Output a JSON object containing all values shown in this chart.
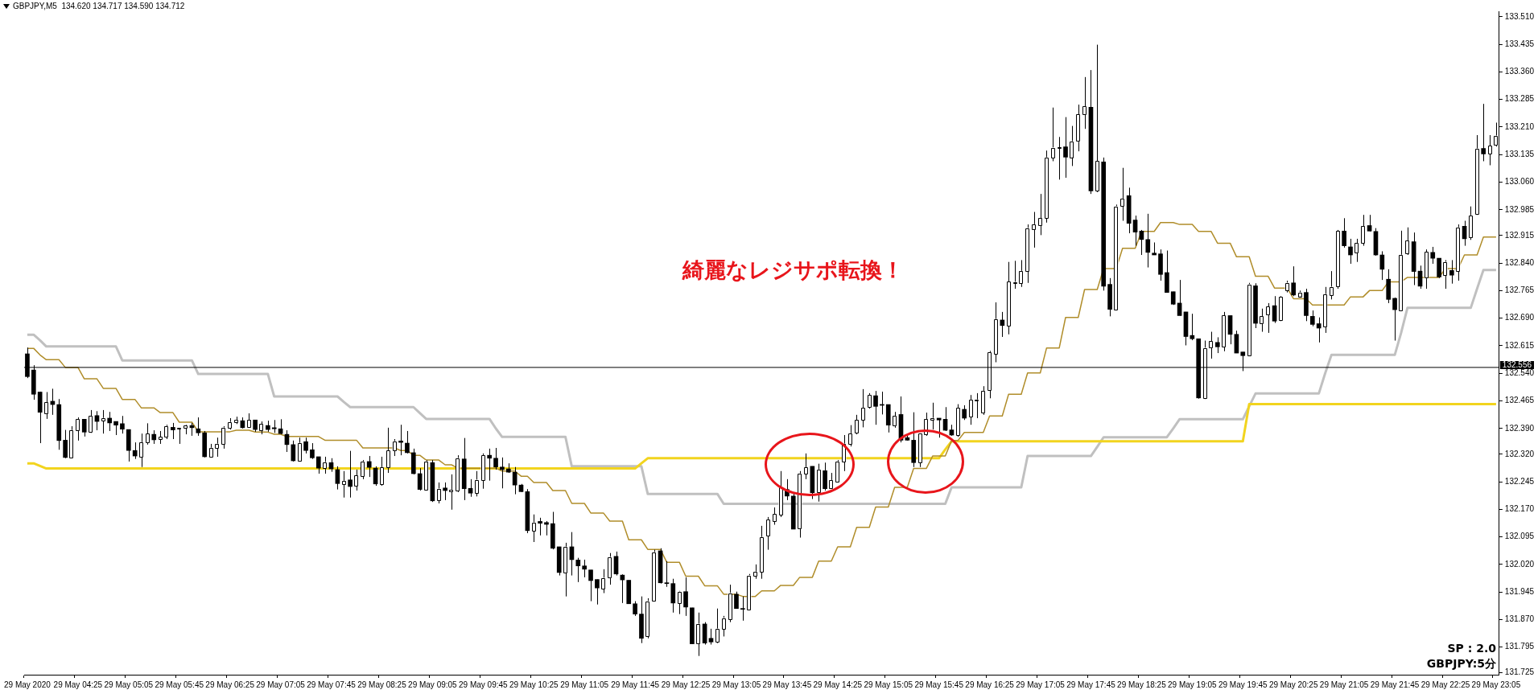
{
  "chart_data": {
    "type": "candlestick",
    "title": "GBPJPY,M5  134.620 134.717 134.590 134.712",
    "annotations": [
      "綺麗なレジサポ転換！",
      "SP : 2.0",
      "GBPJPY:5分"
    ],
    "categories": [
      "29 May 2020",
      null,
      null,
      null,
      null,
      null,
      null,
      null,
      "29 May 04:25",
      null,
      null,
      null,
      null,
      null,
      null,
      null,
      "29 May 05:05",
      null,
      null,
      null,
      null,
      null,
      null,
      null,
      "29 May 05:45",
      null,
      null,
      null,
      null,
      null,
      null,
      null,
      "29 May 06:25",
      null,
      null,
      null,
      null,
      null,
      null,
      null,
      "29 May 07:05",
      null,
      null,
      null,
      null,
      null,
      null,
      null,
      "29 May 07:45",
      null,
      null,
      null,
      null,
      null,
      null,
      null,
      "29 May 08:25",
      null,
      null,
      null,
      null,
      null,
      null,
      null,
      "29 May 09:05",
      null,
      null,
      null,
      null,
      null,
      null,
      null,
      "29 May 09:45",
      null,
      null,
      null,
      null,
      null,
      null,
      null,
      "29 May 10:25",
      null,
      null,
      null,
      null,
      null,
      null,
      null,
      "29 May 11:05",
      null,
      null,
      null,
      null,
      null,
      null,
      null,
      "29 May 11:45",
      null,
      null,
      null,
      null,
      null,
      null,
      null,
      "29 May 12:25",
      null,
      null,
      null,
      null,
      null,
      null,
      null,
      "29 May 13:05",
      null,
      null,
      null,
      null,
      null,
      null,
      null,
      "29 May 13:45",
      null,
      null,
      null,
      null,
      null,
      null,
      null,
      "29 May 14:25",
      null,
      null,
      null,
      null,
      null,
      null,
      null,
      "29 May 15:05",
      null,
      null,
      null,
      null,
      null,
      null,
      null,
      "29 May 15:45",
      null,
      null,
      null,
      null,
      null,
      null,
      null,
      "29 May 16:25",
      null,
      null,
      null,
      null,
      null,
      null,
      null,
      "29 May 17:05",
      null,
      null,
      null,
      null,
      null,
      null,
      null,
      "29 May 17:45",
      null,
      null,
      null,
      null,
      null,
      null,
      null,
      "29 May 18:25",
      null,
      null,
      null,
      null,
      null,
      null,
      null,
      "29 May 19:05",
      null,
      null,
      null,
      null,
      null,
      null,
      null,
      "29 May 19:45",
      null,
      null,
      null,
      null,
      null,
      null,
      null,
      "29 May 20:25",
      null,
      null,
      null,
      null,
      null,
      null,
      null,
      "29 May 21:05",
      null,
      null,
      null,
      null,
      null,
      null,
      null,
      "29 May 21:45",
      null,
      null,
      null,
      null,
      null,
      null,
      null,
      "29 May 22:25",
      null,
      null,
      null,
      null,
      null,
      null,
      null,
      "29 May 23:05"
    ],
    "ohlc": [
      [
        132.593,
        132.61,
        132.527,
        132.531
      ],
      [
        132.549,
        132.562,
        132.468,
        132.483
      ],
      [
        132.489,
        132.49,
        132.35,
        132.434
      ],
      [
        132.431,
        132.489,
        132.416,
        132.461
      ],
      [
        132.464,
        132.498,
        132.427,
        132.455
      ],
      [
        132.455,
        132.47,
        132.332,
        132.357
      ],
      [
        132.358,
        132.386,
        132.309,
        132.311
      ],
      [
        132.311,
        132.396,
        132.311,
        132.385
      ],
      [
        132.385,
        132.42,
        132.357,
        132.415
      ],
      [
        132.415,
        132.415,
        132.368,
        132.38
      ],
      [
        132.38,
        132.44,
        132.378,
        132.424
      ],
      [
        132.425,
        132.437,
        132.385,
        132.409
      ],
      [
        132.411,
        132.44,
        132.376,
        132.418
      ],
      [
        132.418,
        132.435,
        132.383,
        132.405
      ],
      [
        132.409,
        132.409,
        132.372,
        132.399
      ],
      [
        132.403,
        132.424,
        132.376,
        132.388
      ],
      [
        132.387,
        132.387,
        132.3,
        132.33
      ],
      [
        132.33,
        132.352,
        132.307,
        132.315
      ],
      [
        132.313,
        132.376,
        132.285,
        132.352
      ],
      [
        132.352,
        132.404,
        132.346,
        132.376
      ],
      [
        132.374,
        132.385,
        132.348,
        132.359
      ],
      [
        132.361,
        132.383,
        132.348,
        132.367
      ],
      [
        132.367,
        132.4,
        132.361,
        132.396
      ],
      [
        132.393,
        132.405,
        132.361,
        132.386
      ],
      [
        132.388,
        132.391,
        132.348,
        132.391
      ],
      [
        132.392,
        132.4,
        132.374,
        132.398
      ],
      [
        132.398,
        132.405,
        132.37,
        132.392
      ],
      [
        132.389,
        132.42,
        132.37,
        132.378
      ],
      [
        132.378,
        132.383,
        132.311,
        132.313
      ],
      [
        132.313,
        132.348,
        132.311,
        132.337
      ],
      [
        132.337,
        132.365,
        132.313,
        132.348
      ],
      [
        132.348,
        132.396,
        132.335,
        132.392
      ],
      [
        132.392,
        132.418,
        132.387,
        132.407
      ],
      [
        132.406,
        132.422,
        132.402,
        132.413
      ],
      [
        132.411,
        132.42,
        132.39,
        132.392
      ],
      [
        132.394,
        132.431,
        132.392,
        132.413
      ],
      [
        132.413,
        132.413,
        132.381,
        132.387
      ],
      [
        132.385,
        132.409,
        132.374,
        132.402
      ],
      [
        132.398,
        132.411,
        132.381,
        132.387
      ],
      [
        132.392,
        132.413,
        132.378,
        132.389
      ],
      [
        132.389,
        132.415,
        132.374,
        132.376
      ],
      [
        132.374,
        132.385,
        132.326,
        132.346
      ],
      [
        132.346,
        132.357,
        132.3,
        132.302
      ],
      [
        132.302,
        132.365,
        132.3,
        132.35
      ],
      [
        132.354,
        132.365,
        132.322,
        132.33
      ],
      [
        132.332,
        132.35,
        132.307,
        132.31
      ],
      [
        132.313,
        132.313,
        132.267,
        132.282
      ],
      [
        132.282,
        132.313,
        132.267,
        132.298
      ],
      [
        132.297,
        132.309,
        132.272,
        132.28
      ],
      [
        132.278,
        132.287,
        132.224,
        132.24
      ],
      [
        132.239,
        132.274,
        132.202,
        132.247
      ],
      [
        132.25,
        132.329,
        132.202,
        132.232
      ],
      [
        132.233,
        132.278,
        132.221,
        132.262
      ],
      [
        132.26,
        132.304,
        132.252,
        132.3
      ],
      [
        132.3,
        132.315,
        132.258,
        132.284
      ],
      [
        132.282,
        132.287,
        132.234,
        132.239
      ],
      [
        132.239,
        132.313,
        132.234,
        132.284
      ],
      [
        132.284,
        132.392,
        132.269,
        132.33
      ],
      [
        132.33,
        132.361,
        132.315,
        132.355
      ],
      [
        132.356,
        132.4,
        132.317,
        132.352
      ],
      [
        132.35,
        132.383,
        132.322,
        132.324
      ],
      [
        132.324,
        132.335,
        132.265,
        132.267
      ],
      [
        132.267,
        132.282,
        132.221,
        132.224
      ],
      [
        132.224,
        132.304,
        132.224,
        132.3
      ],
      [
        132.297,
        132.304,
        132.19,
        132.193
      ],
      [
        132.195,
        132.243,
        132.186,
        132.226
      ],
      [
        132.228,
        132.243,
        132.195,
        132.221
      ],
      [
        132.219,
        132.265,
        132.169,
        132.223
      ],
      [
        132.221,
        132.317,
        132.217,
        132.309
      ],
      [
        132.307,
        132.364,
        132.195,
        132.226
      ],
      [
        132.227,
        132.252,
        132.204,
        132.214
      ],
      [
        132.215,
        132.274,
        132.205,
        132.25
      ],
      [
        132.25,
        132.322,
        132.226,
        132.317
      ],
      [
        132.317,
        132.335,
        132.248,
        132.309
      ],
      [
        132.309,
        132.337,
        132.278,
        132.285
      ],
      [
        132.285,
        132.311,
        132.227,
        132.278
      ],
      [
        132.28,
        132.295,
        132.269,
        132.271
      ],
      [
        132.271,
        132.285,
        132.211,
        132.236
      ],
      [
        132.236,
        132.239,
        132.217,
        132.218
      ],
      [
        132.218,
        132.225,
        132.105,
        132.112
      ],
      [
        132.112,
        132.156,
        132.081,
        132.134
      ],
      [
        132.137,
        132.147,
        132.099,
        132.132
      ],
      [
        132.134,
        132.138,
        132.099,
        132.129
      ],
      [
        132.131,
        132.163,
        132.061,
        132.064
      ],
      [
        132.068,
        132.068,
        131.99,
        131.998
      ],
      [
        131.997,
        132.079,
        131.933,
        132.068
      ],
      [
        132.068,
        132.108,
        131.99,
        132.033
      ],
      [
        132.032,
        132.038,
        131.972,
        132.016
      ],
      [
        132.016,
        132.033,
        131.985,
        132.007
      ],
      [
        132.005,
        132.005,
        131.92,
        131.976
      ],
      [
        131.979,
        131.979,
        131.911,
        131.956
      ],
      [
        131.955,
        132.007,
        131.942,
        131.983
      ],
      [
        131.985,
        132.051,
        131.965,
        132.04
      ],
      [
        132.042,
        132.055,
        131.99,
        131.994
      ],
      [
        131.991,
        131.993,
        131.915,
        131.978
      ],
      [
        131.977,
        131.977,
        131.913,
        131.913
      ],
      [
        131.913,
        131.92,
        131.88,
        131.885
      ],
      [
        131.885,
        131.933,
        131.806,
        131.819
      ],
      [
        131.825,
        131.928,
        131.819,
        131.92
      ],
      [
        131.921,
        132.06,
        131.92,
        132.053
      ],
      [
        132.057,
        132.064,
        131.968,
        131.97
      ],
      [
        131.97,
        132.029,
        131.959,
        131.968
      ],
      [
        131.968,
        131.981,
        131.889,
        131.915
      ],
      [
        131.915,
        131.948,
        131.885,
        131.946
      ],
      [
        131.946,
        131.985,
        131.88,
        131.904
      ],
      [
        131.902,
        131.902,
        131.804,
        131.804
      ],
      [
        131.806,
        131.889,
        131.771,
        131.858
      ],
      [
        131.858,
        131.863,
        131.802,
        131.806
      ],
      [
        131.819,
        131.845,
        131.802,
        131.809
      ],
      [
        131.81,
        131.9,
        131.806,
        131.845
      ],
      [
        131.845,
        131.88,
        131.824,
        131.874
      ],
      [
        131.872,
        131.965,
        131.863,
        131.942
      ],
      [
        131.939,
        131.946,
        131.9,
        131.9
      ],
      [
        131.9,
        131.933,
        131.867,
        131.898
      ],
      [
        131.898,
        131.994,
        131.898,
        131.99
      ],
      [
        131.988,
        132.02,
        131.981,
        132.0
      ],
      [
        132.0,
        132.125,
        131.981,
        132.094
      ],
      [
        132.099,
        132.149,
        132.06,
        132.142
      ],
      [
        132.138,
        132.175,
        132.128,
        132.157
      ],
      [
        132.156,
        132.274,
        132.149,
        132.23
      ],
      [
        132.224,
        132.252,
        132.195,
        132.206
      ],
      [
        132.206,
        132.217,
        132.116,
        132.116
      ],
      [
        132.119,
        132.274,
        132.093,
        132.267
      ],
      [
        132.267,
        132.322,
        132.252,
        132.284
      ],
      [
        132.287,
        132.287,
        132.198,
        132.215
      ],
      [
        132.217,
        132.294,
        132.191,
        132.278
      ],
      [
        132.275,
        132.297,
        132.221,
        132.226
      ],
      [
        132.228,
        132.269,
        132.226,
        132.249
      ],
      [
        132.246,
        132.304,
        132.243,
        132.3
      ],
      [
        132.3,
        132.372,
        132.274,
        132.348
      ],
      [
        132.348,
        132.399,
        132.341,
        132.376
      ],
      [
        132.379,
        132.427,
        132.374,
        132.413
      ],
      [
        132.413,
        132.497,
        132.393,
        132.446
      ],
      [
        132.448,
        132.486,
        132.444,
        132.481
      ],
      [
        132.479,
        132.492,
        132.4,
        132.45
      ],
      [
        132.455,
        132.49,
        132.428,
        132.453
      ],
      [
        132.455,
        132.455,
        132.379,
        132.399
      ],
      [
        132.398,
        132.435,
        132.392,
        132.424
      ],
      [
        132.428,
        132.477,
        132.352,
        132.358
      ],
      [
        132.365,
        132.374,
        132.357,
        132.358
      ],
      [
        132.358,
        132.434,
        132.285,
        132.297
      ],
      [
        132.297,
        132.376,
        132.285,
        132.376
      ],
      [
        132.374,
        132.433,
        132.37,
        132.415
      ],
      [
        132.413,
        132.46,
        132.387,
        132.418
      ],
      [
        132.418,
        132.418,
        132.365,
        132.413
      ],
      [
        132.415,
        132.448,
        132.383,
        132.385
      ],
      [
        132.386,
        132.4,
        132.37,
        132.372
      ],
      [
        132.372,
        132.456,
        132.367,
        132.446
      ],
      [
        132.442,
        132.453,
        132.413,
        132.418
      ],
      [
        132.421,
        132.481,
        132.4,
        132.468
      ],
      [
        132.466,
        132.486,
        132.418,
        132.468
      ],
      [
        132.434,
        132.505,
        132.427,
        132.492
      ],
      [
        132.495,
        132.601,
        132.472,
        132.597
      ],
      [
        132.592,
        132.733,
        132.57,
        132.687
      ],
      [
        132.685,
        132.707,
        132.639,
        132.67
      ],
      [
        132.668,
        132.843,
        132.646,
        132.789
      ],
      [
        132.786,
        132.846,
        132.77,
        132.787
      ],
      [
        132.786,
        132.848,
        132.775,
        132.818
      ],
      [
        132.818,
        132.945,
        132.786,
        132.935
      ],
      [
        132.932,
        132.979,
        132.882,
        132.945
      ],
      [
        132.943,
        133.028,
        132.916,
        132.962
      ],
      [
        132.962,
        133.146,
        132.95,
        133.127
      ],
      [
        133.127,
        133.263,
        133.117,
        133.154
      ],
      [
        133.152,
        133.183,
        133.067,
        133.154
      ],
      [
        133.156,
        133.237,
        133.072,
        133.128
      ],
      [
        133.128,
        133.213,
        133.104,
        133.171
      ],
      [
        133.171,
        133.271,
        133.144,
        133.244
      ],
      [
        133.244,
        133.346,
        133.205,
        133.266
      ],
      [
        133.264,
        133.365,
        133.028,
        133.036
      ],
      [
        133.036,
        133.434,
        133.033,
        133.117
      ],
      [
        133.115,
        133.127,
        132.765,
        132.777
      ],
      [
        132.782,
        132.799,
        132.695,
        132.714
      ],
      [
        132.714,
        132.999,
        132.711,
        132.994
      ],
      [
        132.995,
        133.099,
        132.955,
        133.015
      ],
      [
        133.023,
        133.045,
        132.921,
        132.948
      ],
      [
        132.957,
        132.969,
        132.887,
        132.924
      ],
      [
        132.927,
        132.93,
        132.862,
        132.904
      ],
      [
        132.904,
        132.974,
        132.828,
        132.869
      ],
      [
        132.867,
        132.896,
        132.862,
        132.862
      ],
      [
        132.865,
        132.877,
        132.792,
        132.809
      ],
      [
        132.814,
        132.874,
        132.76,
        132.76
      ],
      [
        132.762,
        132.762,
        132.726,
        132.728
      ],
      [
        132.731,
        132.794,
        132.697,
        132.697
      ],
      [
        132.707,
        132.707,
        132.616,
        132.64
      ],
      [
        132.643,
        132.702,
        132.63,
        132.634
      ],
      [
        132.634,
        132.634,
        132.471,
        132.473
      ],
      [
        132.473,
        132.629,
        132.47,
        132.609
      ],
      [
        132.609,
        132.653,
        132.58,
        132.627
      ],
      [
        132.624,
        132.638,
        132.595,
        132.612
      ],
      [
        132.612,
        132.707,
        132.6,
        132.697
      ],
      [
        132.697,
        132.697,
        132.619,
        132.646
      ],
      [
        132.646,
        132.656,
        132.595,
        132.595
      ],
      [
        132.598,
        132.598,
        132.546,
        132.588
      ],
      [
        132.59,
        132.786,
        132.59,
        132.782
      ],
      [
        132.778,
        132.785,
        132.663,
        132.676
      ],
      [
        132.676,
        132.716,
        132.653,
        132.695
      ],
      [
        132.699,
        132.731,
        132.65,
        132.721
      ],
      [
        132.724,
        132.75,
        132.677,
        132.682
      ],
      [
        132.684,
        132.75,
        132.682,
        132.748
      ],
      [
        132.767,
        132.792,
        132.76,
        132.786
      ],
      [
        132.786,
        132.831,
        132.75,
        132.753
      ],
      [
        132.75,
        132.765,
        132.746,
        132.76
      ],
      [
        132.76,
        132.77,
        132.682,
        132.697
      ],
      [
        132.695,
        132.711,
        132.668,
        132.673
      ],
      [
        132.675,
        132.692,
        132.624,
        132.663
      ],
      [
        132.668,
        132.775,
        132.65,
        132.755
      ],
      [
        132.753,
        132.818,
        132.741,
        132.775
      ],
      [
        132.775,
        132.93,
        132.77,
        132.927
      ],
      [
        132.927,
        132.962,
        132.882,
        132.887
      ],
      [
        132.884,
        132.906,
        132.838,
        132.862
      ],
      [
        132.867,
        132.906,
        132.843,
        132.894
      ],
      [
        132.894,
        132.971,
        132.887,
        132.94
      ],
      [
        132.942,
        132.971,
        132.926,
        132.927
      ],
      [
        132.926,
        132.935,
        132.86,
        132.862
      ],
      [
        132.862,
        132.872,
        132.794,
        132.823
      ],
      [
        132.796,
        132.823,
        132.731,
        132.741
      ],
      [
        132.744,
        132.746,
        132.629,
        132.713
      ],
      [
        132.711,
        132.928,
        132.709,
        132.862
      ],
      [
        132.865,
        132.937,
        132.862,
        132.901
      ],
      [
        132.898,
        132.923,
        132.78,
        132.817
      ],
      [
        132.818,
        132.833,
        132.77,
        132.777
      ],
      [
        132.799,
        132.877,
        132.77,
        132.87
      ],
      [
        132.869,
        132.884,
        132.838,
        132.853
      ],
      [
        132.853,
        132.853,
        132.799,
        132.802
      ],
      [
        132.807,
        132.848,
        132.77,
        132.843
      ],
      [
        132.82,
        132.848,
        132.784,
        132.807
      ],
      [
        132.819,
        132.945,
        132.792,
        132.937
      ],
      [
        132.94,
        132.955,
        132.887,
        132.906
      ],
      [
        132.911,
        132.994,
        132.903,
        132.969
      ],
      [
        132.974,
        133.188,
        132.971,
        133.151
      ],
      [
        133.152,
        133.273,
        133.117,
        133.137
      ],
      [
        133.137,
        133.188,
        133.106,
        133.159
      ],
      [
        133.161,
        133.222,
        133.157,
        133.186
      ]
    ],
    "series": [
      {
        "type": "line",
        "color": "#c0c0c0",
        "values": [
          132.645,
          132.645,
          132.63,
          132.613,
          132.613,
          132.613,
          132.613,
          132.613,
          132.613,
          132.613,
          132.613,
          132.613,
          132.613,
          132.613,
          132.613,
          132.575,
          132.575,
          132.575,
          132.575,
          132.575,
          132.575,
          132.575,
          132.575,
          132.575,
          132.575,
          132.575,
          132.575,
          132.538,
          132.538,
          132.538,
          132.538,
          132.538,
          132.538,
          132.538,
          132.538,
          132.538,
          132.538,
          132.538,
          132.538,
          132.477,
          132.477,
          132.477,
          132.477,
          132.477,
          132.477,
          132.477,
          132.477,
          132.477,
          132.477,
          132.477,
          132.462,
          132.448,
          132.448,
          132.448,
          132.448,
          132.448,
          132.448,
          132.448,
          132.448,
          132.448,
          132.448,
          132.448,
          132.432,
          132.416,
          132.416,
          132.416,
          132.416,
          132.416,
          132.416,
          132.416,
          132.416,
          132.416,
          132.416,
          132.416,
          132.39,
          132.367,
          132.367,
          132.367,
          132.367,
          132.367,
          132.367,
          132.367,
          132.367,
          132.367,
          132.367,
          132.367,
          132.287,
          132.287,
          132.287,
          132.287,
          132.287,
          132.287,
          132.287,
          132.287,
          132.287,
          132.287,
          132.287,
          132.287,
          132.212,
          132.212,
          132.212,
          132.212,
          132.212,
          132.212,
          132.212,
          132.212,
          132.212,
          132.212,
          132.212,
          132.212,
          132.185,
          132.185,
          132.185,
          132.185,
          132.185,
          132.185,
          132.185,
          132.185,
          132.185,
          132.185,
          132.185,
          132.185,
          132.185,
          132.185,
          132.185,
          132.185,
          132.185,
          132.185,
          132.185,
          132.185,
          132.185,
          132.185,
          132.185,
          132.185,
          132.185,
          132.185,
          132.185,
          132.185,
          132.185,
          132.185,
          132.185,
          132.185,
          132.185,
          132.185,
          132.185,
          132.185,
          132.23,
          132.23,
          132.23,
          132.23,
          132.23,
          132.23,
          132.23,
          132.23,
          132.23,
          132.23,
          132.23,
          132.23,
          132.315,
          132.315,
          132.315,
          132.315,
          132.315,
          132.315,
          132.315,
          132.315,
          132.315,
          132.315,
          132.315,
          132.34,
          132.366,
          132.366,
          132.366,
          132.366,
          132.366,
          132.366,
          132.366,
          132.366,
          132.366,
          132.366,
          132.366,
          132.39,
          132.415,
          132.415,
          132.415,
          132.415,
          132.415,
          132.415,
          132.415,
          132.415,
          132.415,
          132.415,
          132.415,
          132.45,
          132.485,
          132.485,
          132.485,
          132.485,
          132.485,
          132.485,
          132.485,
          132.485,
          132.485,
          132.485,
          132.485,
          132.54,
          132.59,
          132.59,
          132.59,
          132.59,
          132.59,
          132.59,
          132.59,
          132.59,
          132.59,
          132.59,
          132.59,
          132.65,
          132.718,
          132.718,
          132.718,
          132.718,
          132.718,
          132.718,
          132.718,
          132.718,
          132.718,
          132.718,
          132.718,
          132.77,
          132.821,
          132.821,
          132.821
        ]
      },
      {
        "type": "line",
        "color": "#f2d41e",
        "values": [
          132.295,
          132.295,
          132.288,
          132.281,
          132.281,
          132.281,
          132.281,
          132.281,
          132.281,
          132.281,
          132.281,
          132.281,
          132.281,
          132.281,
          132.281,
          132.281,
          132.281,
          132.281,
          132.281,
          132.281,
          132.281,
          132.281,
          132.281,
          132.281,
          132.281,
          132.281,
          132.281,
          132.281,
          132.281,
          132.281,
          132.281,
          132.281,
          132.281,
          132.281,
          132.281,
          132.281,
          132.281,
          132.281,
          132.281,
          132.281,
          132.281,
          132.281,
          132.281,
          132.281,
          132.281,
          132.281,
          132.281,
          132.281,
          132.281,
          132.281,
          132.281,
          132.281,
          132.281,
          132.281,
          132.281,
          132.281,
          132.281,
          132.281,
          132.281,
          132.281,
          132.281,
          132.281,
          132.281,
          132.281,
          132.281,
          132.281,
          132.281,
          132.281,
          132.281,
          132.281,
          132.281,
          132.281,
          132.281,
          132.281,
          132.281,
          132.281,
          132.281,
          132.281,
          132.281,
          132.281,
          132.281,
          132.281,
          132.281,
          132.281,
          132.281,
          132.281,
          132.281,
          132.281,
          132.281,
          132.281,
          132.281,
          132.281,
          132.281,
          132.281,
          132.281,
          132.281,
          132.281,
          132.295,
          132.309,
          132.309,
          132.309,
          132.309,
          132.309,
          132.309,
          132.309,
          132.309,
          132.309,
          132.309,
          132.309,
          132.309,
          132.309,
          132.309,
          132.309,
          132.309,
          132.309,
          132.309,
          132.309,
          132.309,
          132.309,
          132.309,
          132.309,
          132.309,
          132.309,
          132.309,
          132.309,
          132.309,
          132.309,
          132.309,
          132.309,
          132.309,
          132.309,
          132.309,
          132.309,
          132.309,
          132.309,
          132.309,
          132.309,
          132.309,
          132.309,
          132.309,
          132.309,
          132.309,
          132.309,
          132.309,
          132.309,
          132.333,
          132.355,
          132.355,
          132.355,
          132.355,
          132.355,
          132.355,
          132.355,
          132.355,
          132.355,
          132.355,
          132.355,
          132.355,
          132.355,
          132.355,
          132.355,
          132.355,
          132.355,
          132.355,
          132.355,
          132.355,
          132.355,
          132.355,
          132.355,
          132.355,
          132.355,
          132.355,
          132.355,
          132.355,
          132.355,
          132.355,
          132.355,
          132.355,
          132.355,
          132.355,
          132.355,
          132.355,
          132.355,
          132.355,
          132.355,
          132.355,
          132.355,
          132.355,
          132.355,
          132.355,
          132.355,
          132.355,
          132.355,
          132.456,
          132.456,
          132.456,
          132.456,
          132.456,
          132.456,
          132.456,
          132.456,
          132.456,
          132.456,
          132.456,
          132.456,
          132.456,
          132.456,
          132.456,
          132.456,
          132.456,
          132.456,
          132.456,
          132.456,
          132.456,
          132.456,
          132.456,
          132.456,
          132.456,
          132.456,
          132.456,
          132.456,
          132.456,
          132.456,
          132.456,
          132.456,
          132.456,
          132.456,
          132.456,
          132.456,
          132.456,
          132.456,
          132.456,
          132.456
        ]
      },
      {
        "type": "line",
        "color": "#b08d2a",
        "values": [
          132.608,
          132.608,
          132.59,
          132.577,
          132.577,
          132.577,
          132.556,
          132.556,
          132.556,
          132.525,
          132.525,
          132.525,
          132.499,
          132.499,
          132.499,
          132.469,
          132.469,
          132.469,
          132.446,
          132.446,
          132.446,
          132.433,
          132.433,
          132.433,
          132.407,
          132.407,
          132.407,
          132.381,
          132.381,
          132.381,
          132.381,
          132.381,
          132.381,
          132.385,
          132.385,
          132.385,
          132.38,
          132.38,
          132.38,
          132.374,
          132.374,
          132.368,
          132.368,
          132.368,
          132.368,
          132.368,
          132.368,
          132.358,
          132.358,
          132.358,
          132.358,
          132.358,
          132.358,
          132.337,
          132.337,
          132.337,
          132.337,
          132.337,
          132.337,
          132.33,
          132.33,
          132.317,
          132.317,
          132.304,
          132.304,
          132.304,
          132.291,
          132.291,
          132.282,
          132.282,
          132.282,
          132.282,
          132.282,
          132.282,
          132.282,
          132.274,
          132.274,
          132.274,
          132.26,
          132.26,
          132.243,
          132.243,
          132.243,
          132.221,
          132.221,
          132.221,
          132.186,
          132.186,
          132.186,
          132.16,
          132.16,
          132.16,
          132.138,
          132.138,
          132.138,
          132.087,
          132.087,
          132.087,
          132.061,
          132.061,
          132.061,
          132.026,
          132.026,
          132.026,
          131.988,
          131.988,
          131.988,
          131.962,
          131.962,
          131.962,
          131.939,
          131.939,
          131.939,
          131.933,
          131.933,
          131.933,
          131.948,
          131.948,
          131.948,
          131.963,
          131.963,
          131.963,
          131.985,
          131.985,
          131.985,
          132.029,
          132.029,
          132.029,
          132.068,
          132.068,
          132.068,
          132.121,
          132.121,
          132.121,
          132.176,
          132.176,
          132.176,
          132.23,
          132.23,
          132.23,
          132.281,
          132.281,
          132.281,
          132.315,
          132.315,
          132.315,
          132.357,
          132.357,
          132.379,
          132.379,
          132.379,
          132.379,
          132.424,
          132.424,
          132.424,
          132.483,
          132.483,
          132.483,
          132.541,
          132.541,
          132.541,
          132.609,
          132.609,
          132.609,
          132.692,
          132.692,
          132.692,
          132.768,
          132.768,
          132.768,
          132.825,
          132.825,
          132.825,
          132.88,
          132.88,
          132.88,
          132.926,
          132.926,
          132.926,
          132.95,
          132.95,
          132.95,
          132.945,
          132.945,
          132.945,
          132.926,
          132.926,
          132.926,
          132.894,
          132.894,
          132.894,
          132.857,
          132.857,
          132.857,
          132.804,
          132.804,
          132.804,
          132.772,
          132.772,
          132.772,
          132.743,
          132.743,
          132.743,
          132.726,
          132.726,
          132.726,
          132.726,
          132.726,
          132.726,
          132.748,
          132.748,
          132.748,
          132.765,
          132.765,
          132.765,
          132.789,
          132.789,
          132.789,
          132.801,
          132.801,
          132.801,
          132.801,
          132.801,
          132.801,
          132.825,
          132.825,
          132.825,
          132.862,
          132.862,
          132.862,
          132.911,
          132.911,
          132.911
        ]
      }
    ],
    "ylim": [
      131.72,
      133.525
    ],
    "yticks": [
      {
        "value": 131.725,
        "label": "131.725"
      },
      {
        "value": 131.795,
        "label": "131.795"
      },
      {
        "value": 131.87,
        "label": "131.870"
      },
      {
        "value": 131.945,
        "label": "131.945"
      },
      {
        "value": 132.02,
        "label": "132.020"
      },
      {
        "value": 132.095,
        "label": "132.095"
      },
      {
        "value": 132.17,
        "label": "132.170"
      },
      {
        "value": 132.245,
        "label": "132.245"
      },
      {
        "value": 132.32,
        "label": "132.320"
      },
      {
        "value": 132.39,
        "label": "132.390"
      },
      {
        "value": 132.465,
        "label": "132.465"
      },
      {
        "value": 132.54,
        "label": "132.540"
      },
      {
        "value": 132.615,
        "label": "132.615"
      },
      {
        "value": 132.69,
        "label": "132.690"
      },
      {
        "value": 132.765,
        "label": "132.765"
      },
      {
        "value": 132.84,
        "label": "132.840"
      },
      {
        "value": 132.915,
        "label": "132.915"
      },
      {
        "value": 132.985,
        "label": "132.985"
      },
      {
        "value": 133.06,
        "label": "133.060"
      },
      {
        "value": 133.135,
        "label": "133.135"
      },
      {
        "value": 133.21,
        "label": "133.210"
      },
      {
        "value": 133.285,
        "label": "133.285"
      },
      {
        "value": 133.36,
        "label": "133.360"
      },
      {
        "value": 133.435,
        "label": "133.435"
      },
      {
        "value": 133.51,
        "label": "133.510"
      }
    ],
    "ref_lines": [
      {
        "axis": "y",
        "value": 132.556,
        "label": "132.556",
        "color": "#000000"
      }
    ]
  }
}
